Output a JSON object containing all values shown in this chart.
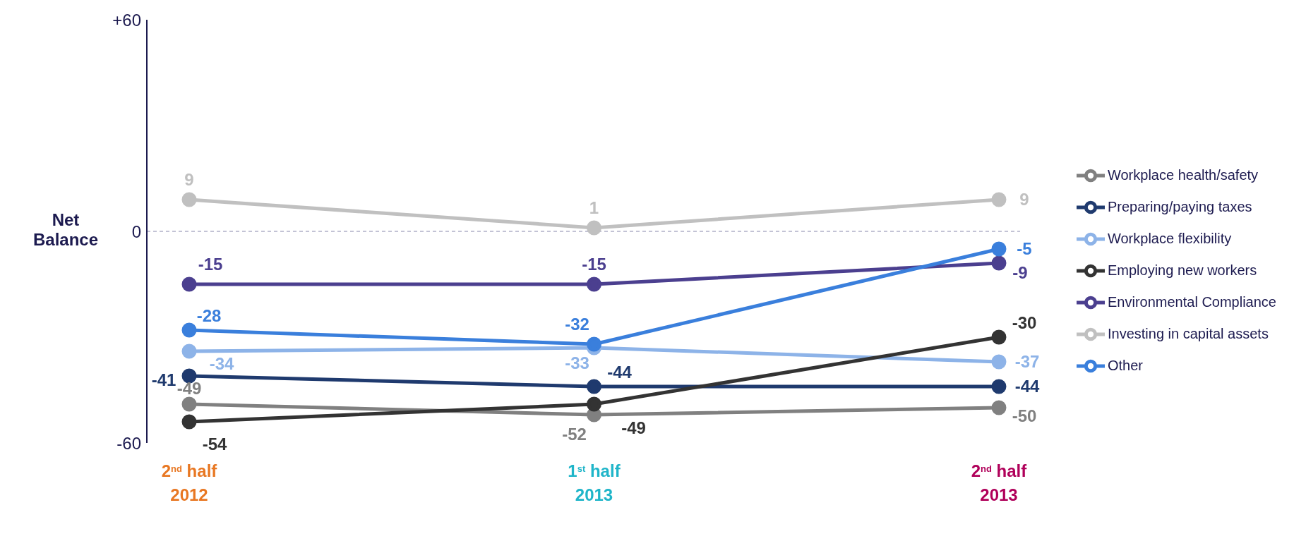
{
  "chart_data": {
    "type": "line",
    "ylabel": "Net Balance",
    "categories": [
      "2$^{nd}$ half 2012",
      "1$^{st}$ half 2013",
      "2$^{nd}$ half 2013"
    ],
    "series": [
      {
        "name": "Workplace health/safety",
        "color": "#808080",
        "values": [
          -49,
          -52,
          -50
        ]
      },
      {
        "name": "Preparing/paying taxes",
        "color": "#1f3a6e",
        "values": [
          -41,
          -44,
          -44
        ]
      },
      {
        "name": "Workplace flexibility",
        "color": "#8db3e8",
        "values": [
          -34,
          -33,
          -37
        ]
      },
      {
        "name": "Employing new workers",
        "color": "#333333",
        "values": [
          -54,
          -49,
          -30
        ]
      },
      {
        "name": "Environmental Compliance",
        "color": "#4b3f8f",
        "values": [
          -15,
          -15,
          -9
        ]
      },
      {
        "name": "Investing in capital assets",
        "color": "#c0c0c0",
        "values": [
          9,
          1,
          9
        ]
      },
      {
        "name": "Other",
        "color": "#3a7fdc",
        "values": [
          -28,
          -32,
          -5
        ]
      }
    ],
    "ylim": [
      -60,
      60
    ],
    "yticks": [
      {
        "value": 60,
        "label": "+60"
      },
      0,
      -60
    ],
    "ref_lines": [
      {
        "axis": "y",
        "value": 0,
        "color": "#b0b0c8",
        "line_style": "dashed"
      }
    ],
    "data_labels": true,
    "grid": false,
    "legend": "right",
    "marker": "circle",
    "line_style": "solid"
  }
}
